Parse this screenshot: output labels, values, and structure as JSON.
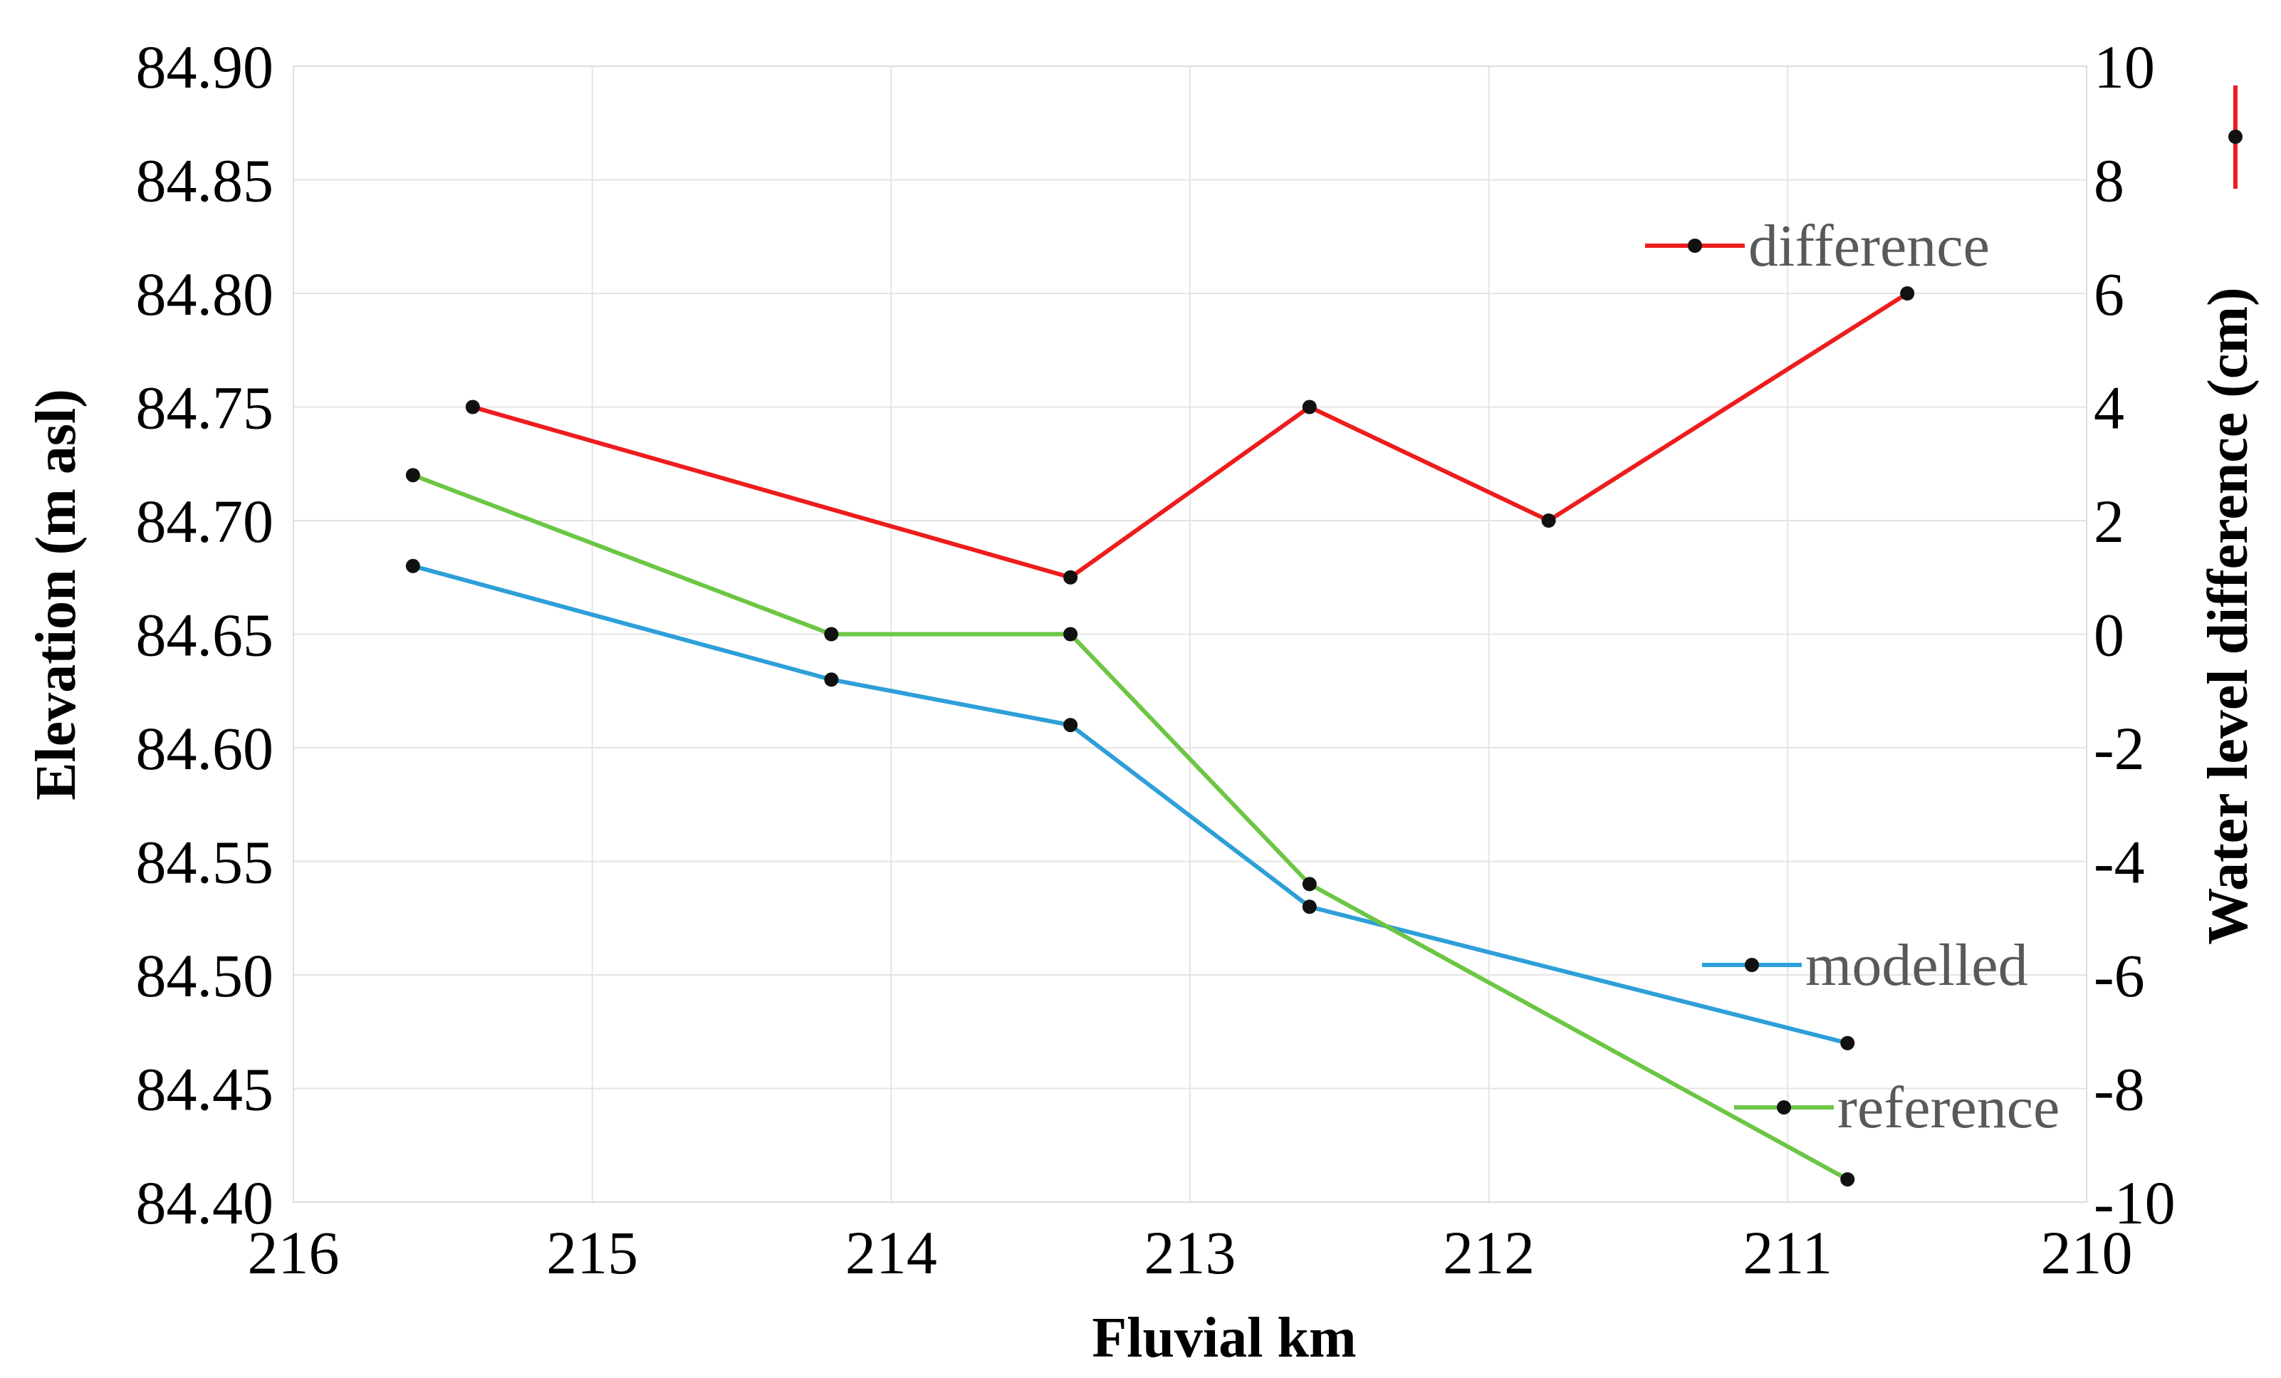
{
  "chart_data": {
    "type": "line",
    "xlabel": "Fluvial km",
    "ylabel": "Elevation (m asl)",
    "y2label": "Water level difference (cm)",
    "xlim": [
      216,
      210
    ],
    "x_reversed": true,
    "xticks": [
      "216",
      "215",
      "214",
      "213",
      "212",
      "211",
      "210"
    ],
    "ylim": [
      84.4,
      84.9
    ],
    "yticks": [
      "84.40",
      "84.45",
      "84.50",
      "84.55",
      "84.60",
      "84.65",
      "84.70",
      "84.75",
      "84.80",
      "84.85",
      "84.90"
    ],
    "y2lim": [
      -10,
      10
    ],
    "y2ticks": [
      "-10",
      "-8",
      "-6",
      "-4",
      "-2",
      "0",
      "2",
      "4",
      "6",
      "8",
      "10"
    ],
    "grid": true,
    "legend_placement": "inside, near each series",
    "series": [
      {
        "name": "modelled",
        "axis": "left",
        "color": "#2e9fd8",
        "x": [
          215.6,
          214.2,
          213.4,
          212.6,
          210.8
        ],
        "y": [
          84.68,
          84.63,
          84.61,
          84.53,
          84.47
        ]
      },
      {
        "name": "reference",
        "axis": "left",
        "color": "#6cc644",
        "x": [
          215.6,
          214.2,
          213.4,
          212.6,
          210.8
        ],
        "y": [
          84.72,
          84.65,
          84.65,
          84.54,
          84.41
        ]
      },
      {
        "name": "difference",
        "axis": "right",
        "color": "#ee1c1c",
        "x": [
          215.4,
          213.4,
          212.6,
          211.8,
          210.6
        ],
        "y": [
          4,
          1,
          4,
          2,
          6
        ]
      }
    ]
  }
}
